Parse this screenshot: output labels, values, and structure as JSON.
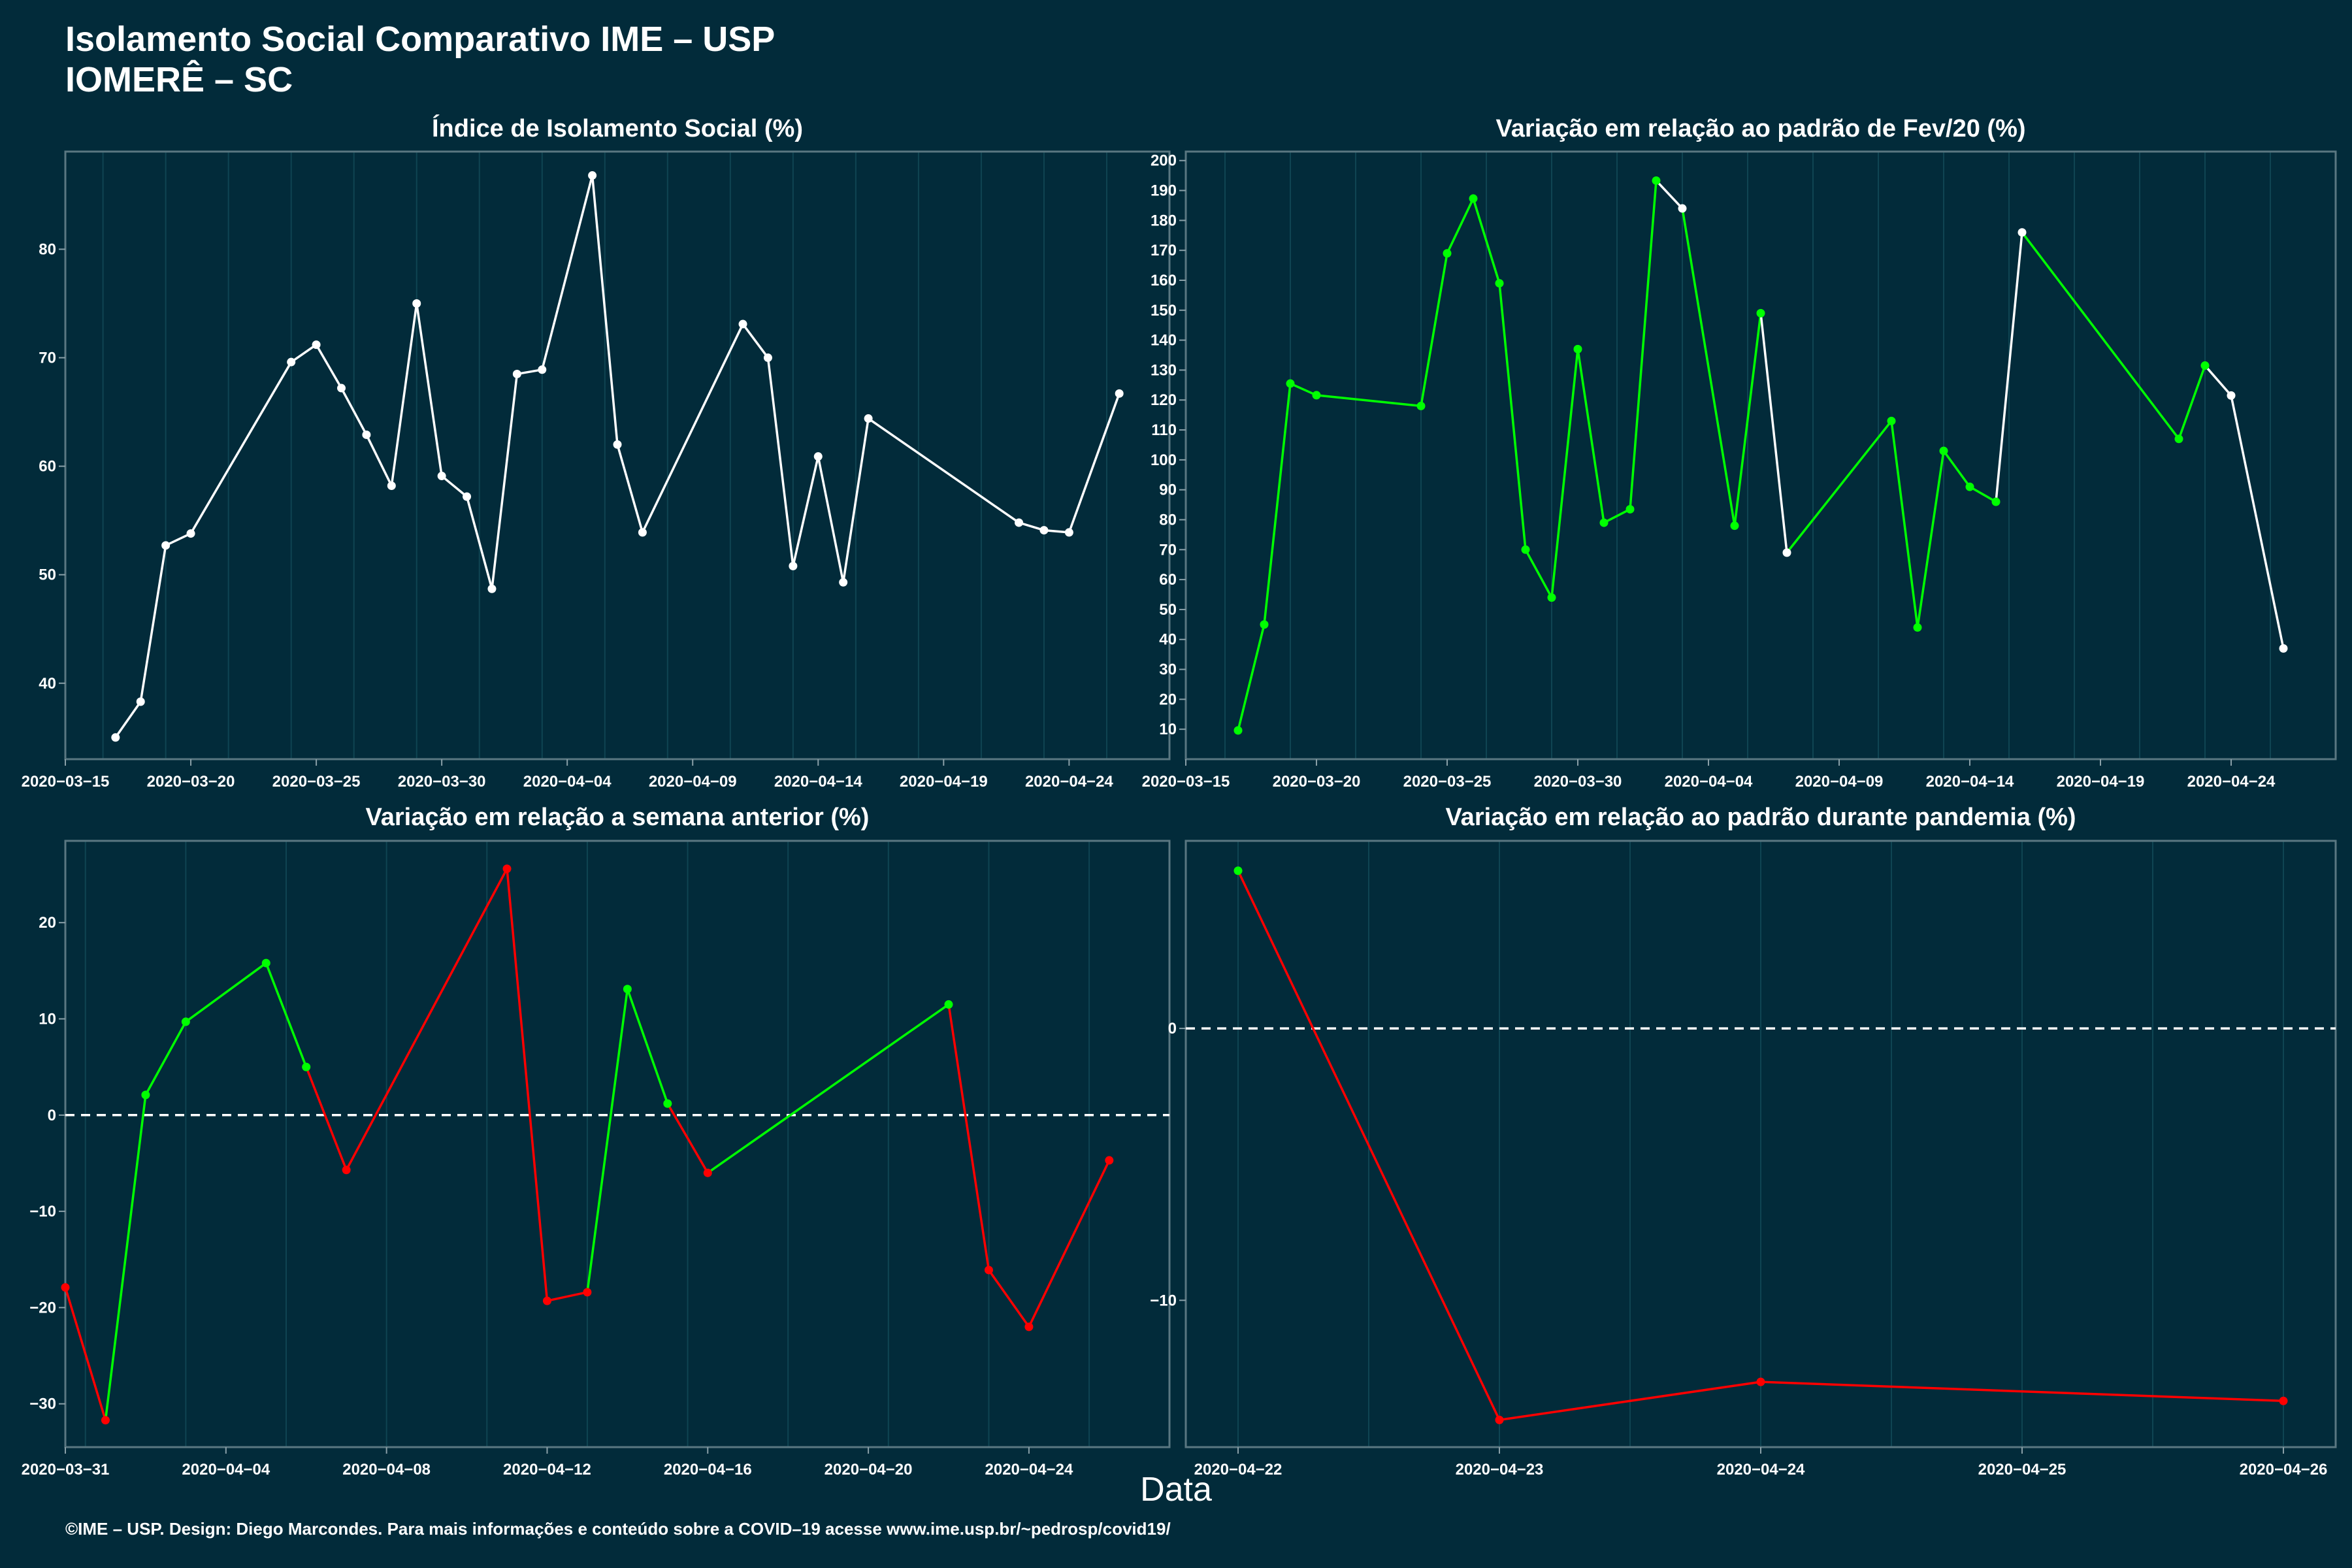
{
  "title_line1": "Isolamento Social Comparativo IME – USP",
  "title_line2": "IOMERÊ – SC",
  "x_axis_label": "Data",
  "caption": "©IME – USP. Design: Diego Marcondes. Para mais informações e conteúdo sobre a COVID–19 acesse www.ime.usp.br/~pedrosp/covid19/",
  "colors": {
    "background": "#022b3a",
    "line": "#ffffff",
    "up": "#00ff00",
    "down": "#ff0000",
    "grid": "#0f4452"
  },
  "chart_data": [
    {
      "type": "line",
      "title": "Índice de Isolamento Social (%)",
      "xlabel": "Data",
      "ylabel": "",
      "xlim": [
        "2020-03-15",
        "2020-04-28"
      ],
      "ylim": [
        33,
        89
      ],
      "x_ticks": [
        "2020-03-15",
        "2020-03-20",
        "2020-03-25",
        "2020-03-30",
        "2020-04-04",
        "2020-04-09",
        "2020-04-14",
        "2020-04-19",
        "2020-04-24"
      ],
      "y_ticks": [
        40,
        50,
        60,
        70,
        80
      ],
      "show_zero_line": false,
      "points": [
        {
          "x": "2020-03-17",
          "y": 35.0,
          "c": "white"
        },
        {
          "x": "2020-03-18",
          "y": 38.3,
          "c": "white"
        },
        {
          "x": "2020-03-19",
          "y": 52.7,
          "c": "white"
        },
        {
          "x": "2020-03-20",
          "y": 53.8,
          "c": "white"
        },
        {
          "x": "2020-03-24",
          "y": 69.6,
          "c": "white"
        },
        {
          "x": "2020-03-25",
          "y": 71.2,
          "c": "white"
        },
        {
          "x": "2020-03-26",
          "y": 67.2,
          "c": "white"
        },
        {
          "x": "2020-03-27",
          "y": 62.9,
          "c": "white"
        },
        {
          "x": "2020-03-28",
          "y": 58.2,
          "c": "white"
        },
        {
          "x": "2020-03-29",
          "y": 75.0,
          "c": "white"
        },
        {
          "x": "2020-03-30",
          "y": 59.1,
          "c": "white"
        },
        {
          "x": "2020-03-31",
          "y": 57.2,
          "c": "white"
        },
        {
          "x": "2020-04-01",
          "y": 48.7,
          "c": "white"
        },
        {
          "x": "2020-04-02",
          "y": 68.5,
          "c": "white"
        },
        {
          "x": "2020-04-03",
          "y": 68.9,
          "c": "white"
        },
        {
          "x": "2020-04-05",
          "y": 86.8,
          "c": "white"
        },
        {
          "x": "2020-04-06",
          "y": 62.0,
          "c": "white"
        },
        {
          "x": "2020-04-07",
          "y": 53.9,
          "c": "white"
        },
        {
          "x": "2020-04-11",
          "y": 73.1,
          "c": "white"
        },
        {
          "x": "2020-04-12",
          "y": 70.0,
          "c": "white"
        },
        {
          "x": "2020-04-13",
          "y": 50.8,
          "c": "white"
        },
        {
          "x": "2020-04-14",
          "y": 60.9,
          "c": "white"
        },
        {
          "x": "2020-04-15",
          "y": 49.3,
          "c": "white"
        },
        {
          "x": "2020-04-16",
          "y": 64.4,
          "c": "white"
        },
        {
          "x": "2020-04-22",
          "y": 54.8,
          "c": "white"
        },
        {
          "x": "2020-04-23",
          "y": 54.1,
          "c": "white"
        },
        {
          "x": "2020-04-24",
          "y": 53.9,
          "c": "white"
        },
        {
          "x": "2020-04-26",
          "y": 66.7,
          "c": "white"
        }
      ]
    },
    {
      "type": "line",
      "title": "Variação em relação ao padrão de Fev/20 (%)",
      "xlabel": "Data",
      "ylabel": "",
      "xlim": [
        "2020-03-15",
        "2020-04-28"
      ],
      "ylim": [
        0,
        203
      ],
      "x_ticks": [
        "2020-03-15",
        "2020-03-20",
        "2020-03-25",
        "2020-03-30",
        "2020-04-04",
        "2020-04-09",
        "2020-04-14",
        "2020-04-19",
        "2020-04-24"
      ],
      "y_ticks": [
        10,
        20,
        30,
        40,
        50,
        60,
        70,
        80,
        90,
        100,
        110,
        120,
        130,
        140,
        150,
        160,
        170,
        180,
        190,
        200
      ],
      "show_zero_line": false,
      "points": [
        {
          "x": "2020-03-17",
          "y": 9.6,
          "c": "green"
        },
        {
          "x": "2020-03-18",
          "y": 45.0,
          "c": "green"
        },
        {
          "x": "2020-03-19",
          "y": 125.5,
          "c": "green"
        },
        {
          "x": "2020-03-20",
          "y": 121.6,
          "c": "green"
        },
        {
          "x": "2020-03-24",
          "y": 118.0,
          "c": "green"
        },
        {
          "x": "2020-03-25",
          "y": 169.0,
          "c": "green"
        },
        {
          "x": "2020-03-26",
          "y": 187.3,
          "c": "green"
        },
        {
          "x": "2020-03-27",
          "y": 159.0,
          "c": "green"
        },
        {
          "x": "2020-03-28",
          "y": 70.0,
          "c": "green"
        },
        {
          "x": "2020-03-29",
          "y": 54.0,
          "c": "green"
        },
        {
          "x": "2020-03-30",
          "y": 137.0,
          "c": "green"
        },
        {
          "x": "2020-03-31",
          "y": 79.0,
          "c": "green"
        },
        {
          "x": "2020-04-01",
          "y": 83.5,
          "c": "green"
        },
        {
          "x": "2020-04-02",
          "y": 193.3,
          "c": "green"
        },
        {
          "x": "2020-04-03",
          "y": 184.0,
          "c": "white"
        },
        {
          "x": "2020-04-05",
          "y": 78.0,
          "c": "green"
        },
        {
          "x": "2020-04-06",
          "y": 149.0,
          "c": "green"
        },
        {
          "x": "2020-04-07",
          "y": 69.0,
          "c": "white"
        },
        {
          "x": "2020-04-11",
          "y": 113.0,
          "c": "green"
        },
        {
          "x": "2020-04-12",
          "y": 44.0,
          "c": "green"
        },
        {
          "x": "2020-04-13",
          "y": 103.0,
          "c": "green"
        },
        {
          "x": "2020-04-14",
          "y": 91.0,
          "c": "green"
        },
        {
          "x": "2020-04-15",
          "y": 86.0,
          "c": "green"
        },
        {
          "x": "2020-04-16",
          "y": 176.0,
          "c": "white"
        },
        {
          "x": "2020-04-22",
          "y": 107.0,
          "c": "green"
        },
        {
          "x": "2020-04-23",
          "y": 131.5,
          "c": "green"
        },
        {
          "x": "2020-04-24",
          "y": 121.5,
          "c": "white"
        },
        {
          "x": "2020-04-26",
          "y": 37.0,
          "c": "white"
        }
      ]
    },
    {
      "type": "line",
      "title": "Variação em relação a semana anterior (%)",
      "xlabel": "Data",
      "ylabel": "",
      "xlim": [
        "2020-03-31",
        "2020-04-27.5"
      ],
      "ylim": [
        -34.5,
        28.5
      ],
      "x_ticks": [
        "2020-03-31",
        "2020-04-04",
        "2020-04-08",
        "2020-04-12",
        "2020-04-16",
        "2020-04-20",
        "2020-04-24"
      ],
      "y_ticks": [
        -30,
        -20,
        -10,
        0,
        10,
        20
      ],
      "show_zero_line": true,
      "points": [
        {
          "x": "2020-03-31",
          "y": -17.9,
          "c": "red"
        },
        {
          "x": "2020-04-01",
          "y": -31.7,
          "c": "red"
        },
        {
          "x": "2020-04-02",
          "y": 2.1,
          "c": "green"
        },
        {
          "x": "2020-04-03",
          "y": 9.7,
          "c": "green"
        },
        {
          "x": "2020-04-05",
          "y": 15.8,
          "c": "green"
        },
        {
          "x": "2020-04-06",
          "y": 5.0,
          "c": "green"
        },
        {
          "x": "2020-04-07",
          "y": -5.7,
          "c": "red"
        },
        {
          "x": "2020-04-11",
          "y": 25.6,
          "c": "red"
        },
        {
          "x": "2020-04-12",
          "y": -19.3,
          "c": "red"
        },
        {
          "x": "2020-04-13",
          "y": -18.4,
          "c": "red"
        },
        {
          "x": "2020-04-14",
          "y": 13.1,
          "c": "green"
        },
        {
          "x": "2020-04-15",
          "y": 1.2,
          "c": "green"
        },
        {
          "x": "2020-04-16",
          "y": -6.0,
          "c": "red"
        },
        {
          "x": "2020-04-22",
          "y": 11.5,
          "c": "green"
        },
        {
          "x": "2020-04-23",
          "y": -16.1,
          "c": "red"
        },
        {
          "x": "2020-04-24",
          "y": -22.0,
          "c": "red"
        },
        {
          "x": "2020-04-26",
          "y": -4.7,
          "c": "red"
        }
      ]
    },
    {
      "type": "line",
      "title": "Variação em relação ao padrão durante pandemia (%)",
      "xlabel": "Data",
      "ylabel": "",
      "xlim": [
        "2020-04-21.8",
        "2020-04-26.2"
      ],
      "ylim": [
        -15.4,
        6.9
      ],
      "x_ticks": [
        "2020-04-22",
        "2020-04-23",
        "2020-04-24",
        "2020-04-25",
        "2020-04-26"
      ],
      "y_ticks": [
        -10,
        0
      ],
      "show_zero_line": true,
      "points": [
        {
          "x": "2020-04-22",
          "y": 5.8,
          "c": "green"
        },
        {
          "x": "2020-04-23",
          "y": -14.4,
          "c": "red"
        },
        {
          "x": "2020-04-24",
          "y": -13.0,
          "c": "red"
        },
        {
          "x": "2020-04-26",
          "y": -13.7,
          "c": "red"
        }
      ]
    }
  ]
}
